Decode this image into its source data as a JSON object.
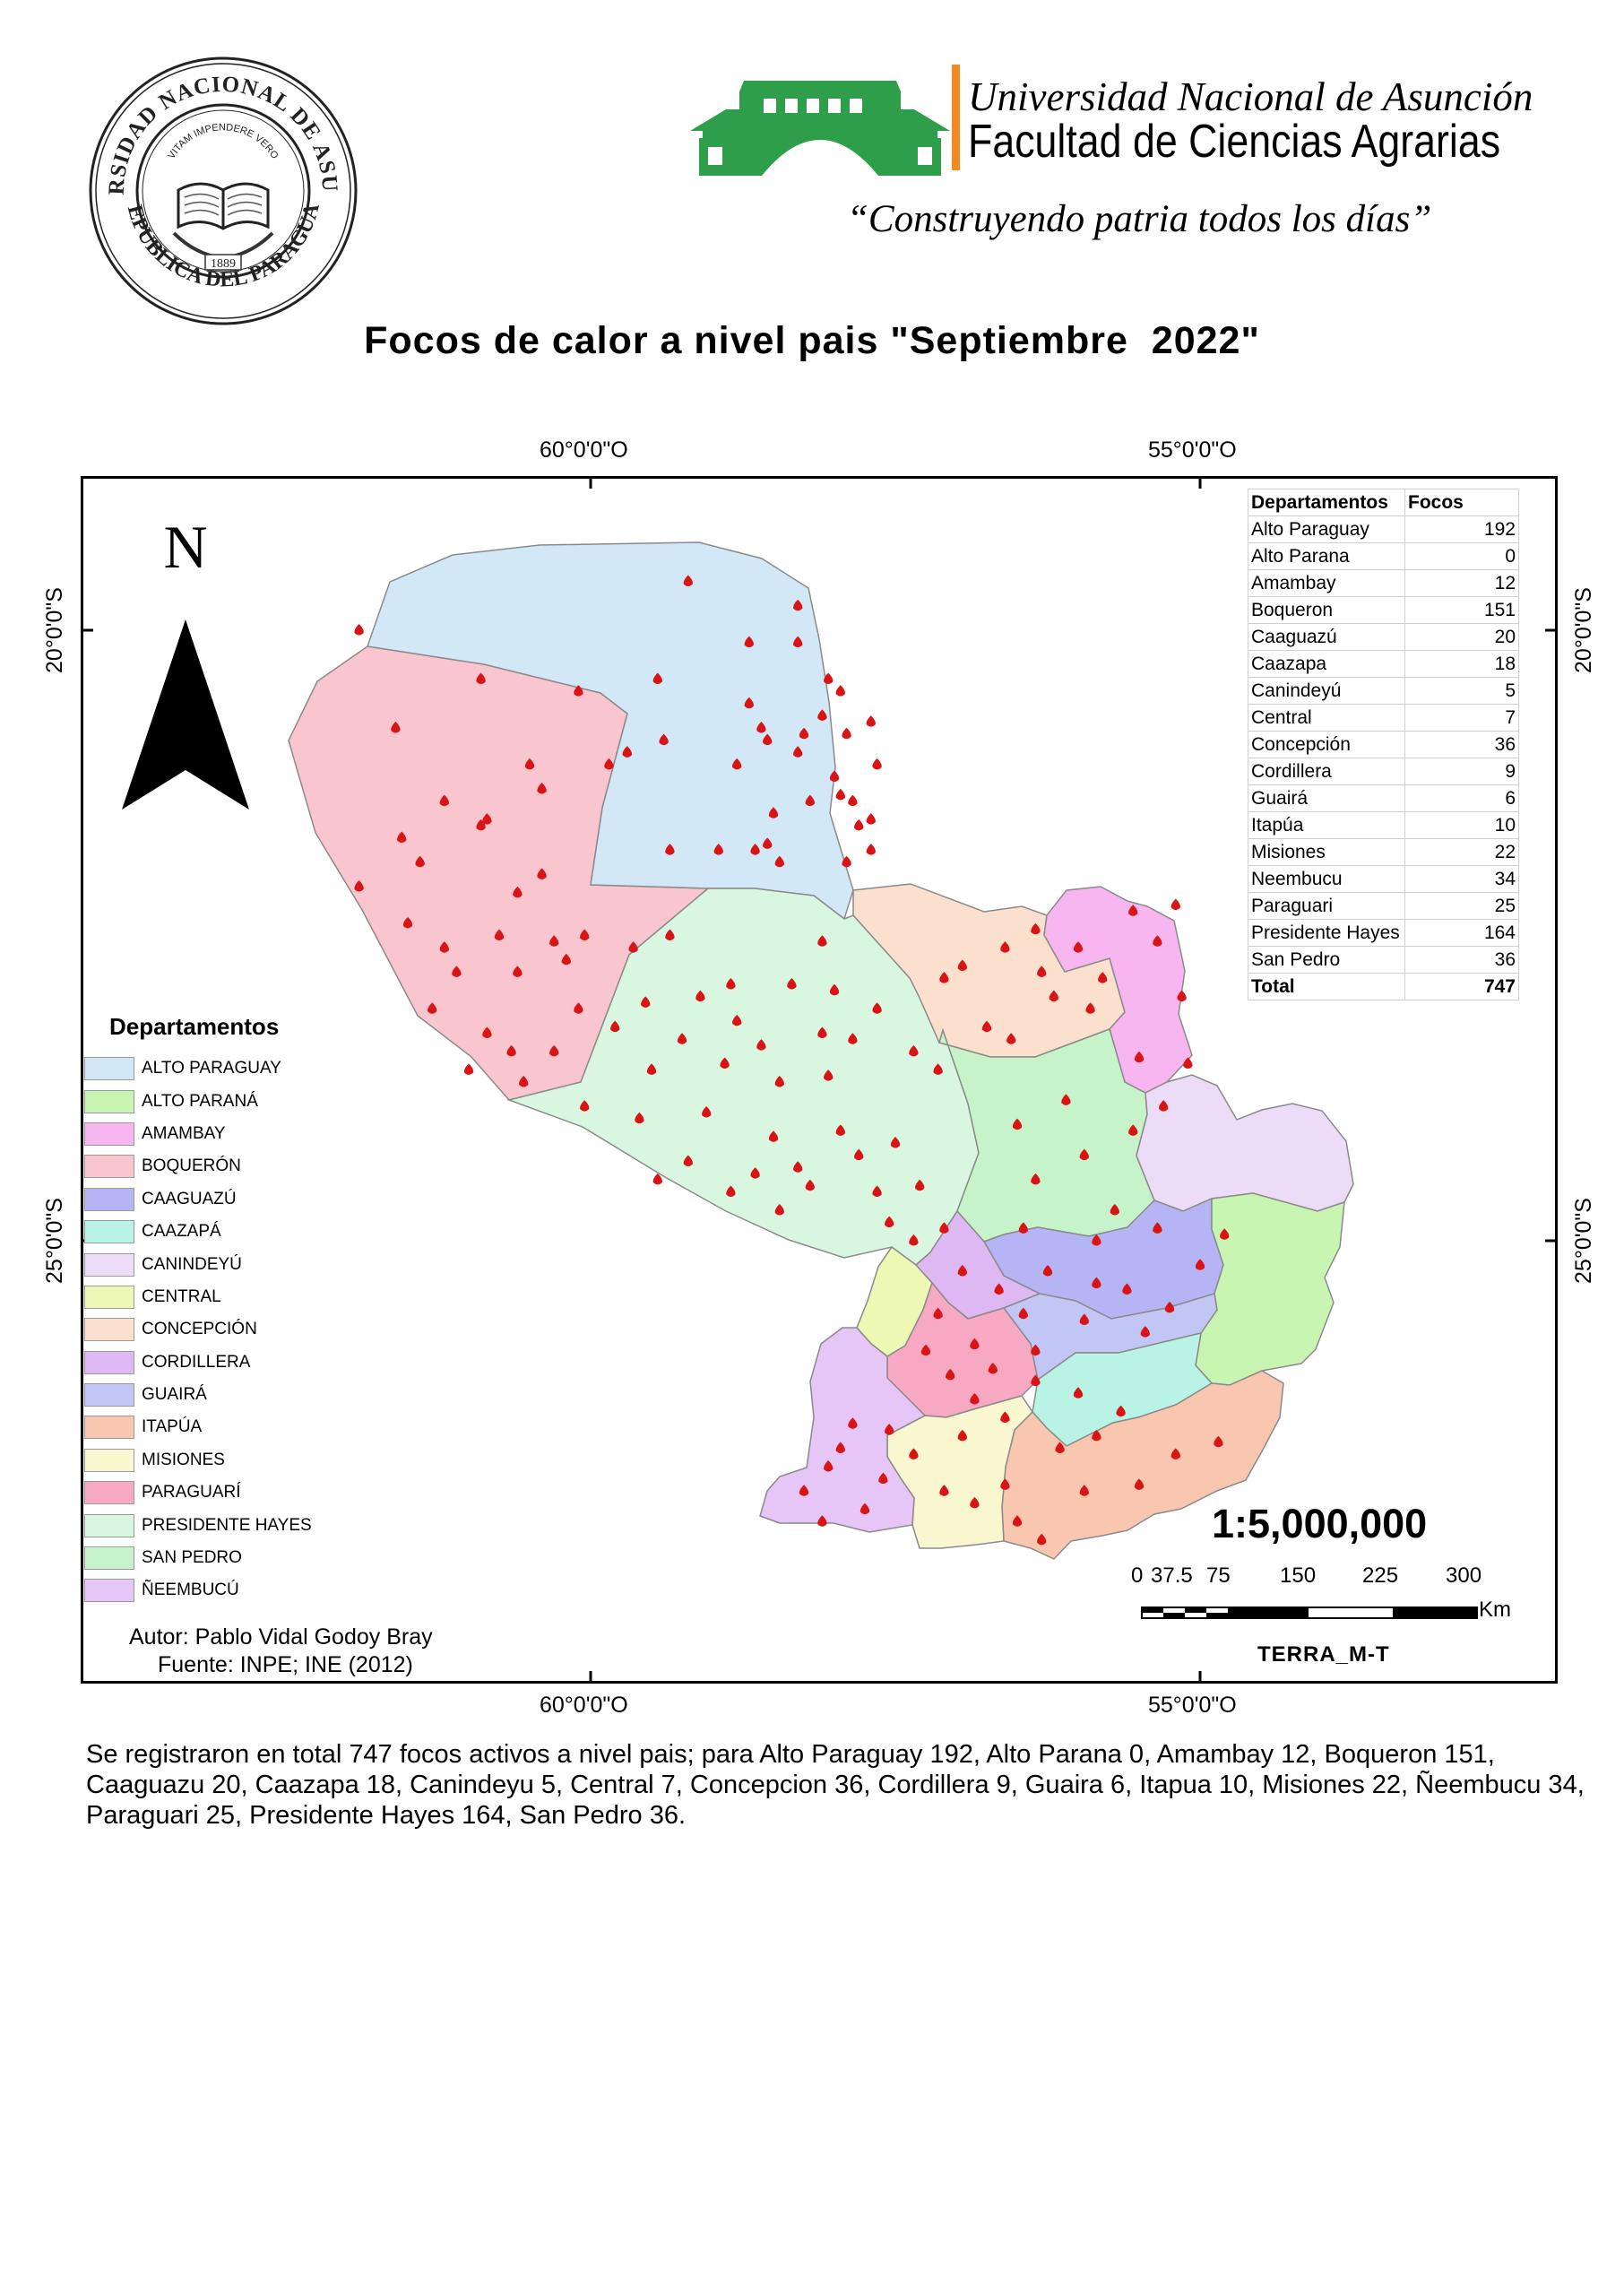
{
  "header": {
    "seal": {
      "outer_ring_text": "UNIVERSIDAD NACIONAL DE ASUNCION",
      "inner_text": "VITAM IMPENDERE VERO",
      "year": "1889",
      "bottom_text": "REPUBLICA DEL PARAGUAY"
    },
    "university_name": "Universidad Nacional de Asunción",
    "faculty_name": "Facultad de Ciencias Agrarias",
    "motto": "“Construyendo patria todos los días”",
    "logo_color": "#2e9e4a",
    "divider_color": "#f08a24"
  },
  "title": "Focos de calor a nivel pais \"Septiembre  2022\"",
  "map": {
    "coords": {
      "lon_60": "60°0'0\"O",
      "lon_55": "55°0'0\"O",
      "lat_20": "20°0'0\"S",
      "lat_25": "25°0'0\"S"
    },
    "north_arrow_label": "N",
    "point_color": "#d91414",
    "hotspots": [
      [
        -59.7,
        -21.0
      ],
      [
        -59.7,
        -21.0
      ],
      [
        -59.2,
        -19.6
      ],
      [
        -58.3,
        -19.8
      ],
      [
        -58.3,
        -20.1
      ],
      [
        -58.05,
        -20.4
      ],
      [
        -57.95,
        -20.5
      ],
      [
        -58.7,
        -20.6
      ],
      [
        -58.55,
        -20.9
      ],
      [
        -58.6,
        -20.8
      ],
      [
        -58.25,
        -20.85
      ],
      [
        -57.9,
        -20.85
      ],
      [
        -57.7,
        -20.75
      ],
      [
        -57.65,
        -21.1
      ],
      [
        -58.2,
        -21.4
      ],
      [
        -57.85,
        -21.4
      ],
      [
        -57.95,
        -21.35
      ],
      [
        -57.7,
        -21.55
      ],
      [
        -58.95,
        -21.8
      ],
      [
        -58.65,
        -21.8
      ],
      [
        -58.45,
        -21.9
      ],
      [
        -58.55,
        -21.75
      ],
      [
        -57.7,
        -21.8
      ],
      [
        -58.8,
        -21.1
      ],
      [
        -59.35,
        -21.8
      ],
      [
        -59.4,
        -20.9
      ],
      [
        -59.45,
        -20.4
      ],
      [
        -58.7,
        -20.1
      ],
      [
        -58.3,
        -21.0
      ],
      [
        -58.0,
        -21.2
      ],
      [
        -58.5,
        -21.5
      ],
      [
        -57.9,
        -21.9
      ],
      [
        -57.8,
        -21.6
      ],
      [
        -58.1,
        -20.7
      ],
      [
        -61.9,
        -20.0
      ],
      [
        -61.6,
        -20.8
      ],
      [
        -60.9,
        -20.4
      ],
      [
        -60.1,
        -20.5
      ],
      [
        -60.5,
        -21.1
      ],
      [
        -61.2,
        -21.4
      ],
      [
        -60.9,
        -21.6
      ],
      [
        -61.4,
        -21.9
      ],
      [
        -60.4,
        -22.0
      ],
      [
        -60.75,
        -22.5
      ],
      [
        -61.2,
        -22.6
      ],
      [
        -61.9,
        -22.1
      ],
      [
        -61.5,
        -22.4
      ],
      [
        -61.3,
        -23.1
      ],
      [
        -61.1,
        -22.8
      ],
      [
        -60.6,
        -22.8
      ],
      [
        -60.3,
        -22.55
      ],
      [
        -60.85,
        -23.3
      ],
      [
        -61.0,
        -23.6
      ],
      [
        -60.55,
        -23.7
      ],
      [
        -60.6,
        -22.15
      ],
      [
        -60.2,
        -22.7
      ],
      [
        -60.05,
        -22.5
      ],
      [
        -59.85,
        -21.1
      ],
      [
        -60.85,
        -21.55
      ],
      [
        -60.4,
        -21.3
      ],
      [
        -61.55,
        -21.7
      ],
      [
        -60.3,
        -23.45
      ],
      [
        -60.65,
        -23.45
      ],
      [
        -60.1,
        -23.1
      ],
      [
        -59.65,
        -22.6
      ],
      [
        -59.1,
        -23.0
      ],
      [
        -58.85,
        -22.9
      ],
      [
        -59.35,
        -22.5
      ],
      [
        -58.6,
        -23.4
      ],
      [
        -58.8,
        -23.2
      ],
      [
        -59.25,
        -23.35
      ],
      [
        -59.55,
        -23.05
      ],
      [
        -58.35,
        -22.9
      ],
      [
        -58.1,
        -23.3
      ],
      [
        -59.05,
        -23.95
      ],
      [
        -59.5,
        -23.6
      ],
      [
        -58.5,
        -24.15
      ],
      [
        -58.3,
        -24.4
      ],
      [
        -57.8,
        -24.3
      ],
      [
        -57.95,
        -24.1
      ],
      [
        -57.5,
        -24.2
      ],
      [
        -58.05,
        -23.65
      ],
      [
        -57.85,
        -23.35
      ],
      [
        -58.45,
        -23.7
      ],
      [
        -58.65,
        -24.45
      ],
      [
        -58.2,
        -24.55
      ],
      [
        -57.65,
        -24.6
      ],
      [
        -57.3,
        -24.55
      ],
      [
        -58.45,
        -24.75
      ],
      [
        -59.2,
        -24.35
      ],
      [
        -59.6,
        -24.0
      ],
      [
        -60.05,
        -23.9
      ],
      [
        -58.1,
        -22.55
      ],
      [
        -58.0,
        -22.95
      ],
      [
        -57.65,
        -23.1
      ],
      [
        -57.35,
        -23.45
      ],
      [
        -57.15,
        -23.6
      ],
      [
        -58.85,
        -24.6
      ],
      [
        -59.45,
        -24.5
      ],
      [
        -57.1,
        -24.9
      ],
      [
        -57.35,
        -25.0
      ],
      [
        -57.55,
        -24.85
      ],
      [
        -58.9,
        -23.55
      ],
      [
        -59.8,
        -23.25
      ],
      [
        -56.6,
        -22.6
      ],
      [
        -56.3,
        -22.8
      ],
      [
        -56.95,
        -22.75
      ],
      [
        -56.2,
        -23.0
      ],
      [
        -56.0,
        -22.6
      ],
      [
        -56.75,
        -23.25
      ],
      [
        -55.9,
        -23.1
      ],
      [
        -56.55,
        -23.35
      ],
      [
        -57.1,
        -22.85
      ],
      [
        -56.35,
        -22.45
      ],
      [
        -55.55,
        -22.3
      ],
      [
        -55.35,
        -22.55
      ],
      [
        -55.2,
        -22.25
      ],
      [
        -55.15,
        -23.0
      ],
      [
        -55.5,
        -23.5
      ],
      [
        -55.1,
        -23.55
      ],
      [
        -55.8,
        -22.85
      ],
      [
        -56.5,
        -24.05
      ],
      [
        -56.1,
        -23.85
      ],
      [
        -56.35,
        -24.5
      ],
      [
        -55.95,
        -24.3
      ],
      [
        -55.7,
        -24.75
      ],
      [
        -55.55,
        -24.1
      ],
      [
        -56.45,
        -24.9
      ],
      [
        -55.85,
        -25.0
      ],
      [
        -55.3,
        -23.9
      ],
      [
        -55.35,
        -24.9
      ],
      [
        -55.0,
        -25.2
      ],
      [
        -54.8,
        -24.95
      ],
      [
        -55.6,
        -25.4
      ],
      [
        -55.25,
        -25.55
      ],
      [
        -55.85,
        -25.35
      ],
      [
        -56.25,
        -25.25
      ],
      [
        -55.45,
        -25.75
      ],
      [
        -55.95,
        -25.65
      ],
      [
        -56.65,
        -25.4
      ],
      [
        -56.45,
        -25.6
      ],
      [
        -56.85,
        -25.85
      ],
      [
        -56.95,
        -25.25
      ],
      [
        -56.35,
        -25.9
      ],
      [
        -56.7,
        -26.05
      ],
      [
        -56.35,
        -26.15
      ],
      [
        -56.6,
        -26.45
      ],
      [
        -56.95,
        -26.6
      ],
      [
        -56.85,
        -26.3
      ],
      [
        -56.0,
        -26.25
      ],
      [
        -55.65,
        -26.4
      ],
      [
        -55.85,
        -26.6
      ],
      [
        -56.15,
        -26.7
      ],
      [
        -57.15,
        -25.6
      ],
      [
        -57.25,
        -25.9
      ],
      [
        -57.05,
        -26.1
      ],
      [
        -57.85,
        -26.5
      ],
      [
        -57.95,
        -26.7
      ],
      [
        -57.6,
        -26.95
      ],
      [
        -57.75,
        -27.2
      ],
      [
        -58.25,
        -27.05
      ],
      [
        -58.1,
        -27.3
      ],
      [
        -57.35,
        -26.75
      ],
      [
        -58.05,
        -26.85
      ],
      [
        -57.55,
        -26.55
      ],
      [
        -57.1,
        -27.05
      ],
      [
        -56.85,
        -27.15
      ],
      [
        -56.5,
        -27.3
      ],
      [
        -56.6,
        -27.0
      ],
      [
        -56.3,
        -27.45
      ],
      [
        -55.95,
        -27.05
      ],
      [
        -55.5,
        -27.0
      ],
      [
        -55.2,
        -26.75
      ],
      [
        -54.85,
        -26.65
      ]
    ]
  },
  "table": {
    "headers": [
      "Departamentos",
      "Focos"
    ],
    "rows": [
      {
        "name": "Alto Paraguay",
        "value": "192"
      },
      {
        "name": "Alto Parana",
        "value": "0"
      },
      {
        "name": "Amambay",
        "value": "12"
      },
      {
        "name": "Boqueron",
        "value": "151"
      },
      {
        "name": "Caaguazú",
        "value": "20"
      },
      {
        "name": "Caazapa",
        "value": "18"
      },
      {
        "name": "Canindeyú",
        "value": "5"
      },
      {
        "name": "Central",
        "value": "7"
      },
      {
        "name": "Concepción",
        "value": "36"
      },
      {
        "name": "Cordillera",
        "value": "9"
      },
      {
        "name": "Guairá",
        "value": "6"
      },
      {
        "name": "Itapúa",
        "value": "10"
      },
      {
        "name": "Misiones",
        "value": "22"
      },
      {
        "name": "Neembucu",
        "value": "34"
      },
      {
        "name": "Paraguari",
        "value": "25"
      },
      {
        "name": "Presidente Hayes",
        "value": "164"
      },
      {
        "name": "San Pedro",
        "value": "36"
      }
    ],
    "total": {
      "name": "Total",
      "value": "747"
    }
  },
  "legend": {
    "title": "Departamentos",
    "items": [
      {
        "label": "ALTO PARAGUAY",
        "color": "#d3e8f7"
      },
      {
        "label": "ALTO PARANÁ",
        "color": "#c9f5b3"
      },
      {
        "label": "AMAMBAY",
        "color": "#f7b6f0"
      },
      {
        "label": "BOQUERÓN",
        "color": "#f9c6cf"
      },
      {
        "label": "CAAGUAZÚ",
        "color": "#b5b5f5"
      },
      {
        "label": "CAAZAPÁ",
        "color": "#b8f3e6"
      },
      {
        "label": "CANINDEYÚ",
        "color": "#ecdcf7"
      },
      {
        "label": "CENTRAL",
        "color": "#ecf8b4"
      },
      {
        "label": "CONCEPCIÓN",
        "color": "#fbe1cd"
      },
      {
        "label": "CORDILLERA",
        "color": "#ddb8f3"
      },
      {
        "label": "GUAIRÁ",
        "color": "#c1c6f5"
      },
      {
        "label": "ITAPÚA",
        "color": "#f9c7b0"
      },
      {
        "label": "MISIONES",
        "color": "#f9f7cf"
      },
      {
        "label": "PARAGUARÍ",
        "color": "#f7a9c4"
      },
      {
        "label": "PRESIDENTE HAYES",
        "color": "#d9f7e0"
      },
      {
        "label": "SAN PEDRO",
        "color": "#c6f3c9"
      },
      {
        "label": "ÑEEMBUCÚ",
        "color": "#e6c6f6"
      }
    ]
  },
  "credits": {
    "author": "Autor: Pablo Vidal Godoy Bray",
    "source": "Fuente: INPE; INE (2012)"
  },
  "scale": {
    "ratio": "1:5,000,000",
    "ticks": [
      "0",
      "37.5",
      "75",
      "150",
      "225",
      "300"
    ],
    "unit": "Km",
    "satellite": "TERRA_M-T"
  },
  "summary": "Se registraron en total 747  focos activos a nivel pais; para Alto Paraguay 192, Alto Parana 0, Amambay 12, Boqueron 151, Caaguazu 20, Caazapa 18, Canindeyu 5, Central 7, Concepcion 36, Cordillera 9, Guaira 6, Itapua 10, Misiones 22, Ñeembucu 34, Paraguari 25, Presidente Hayes 164, San Pedro 36."
}
